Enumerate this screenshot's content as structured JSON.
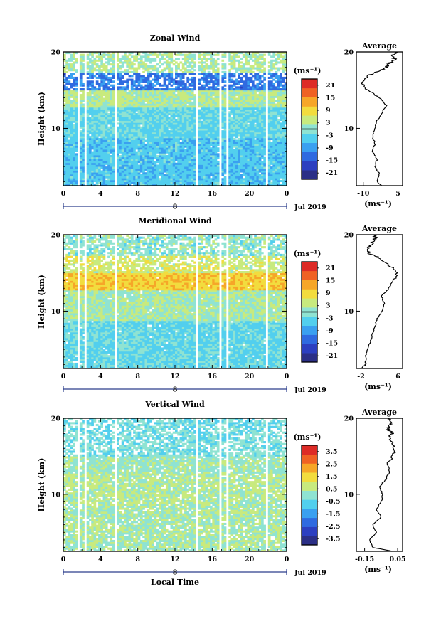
{
  "colors": {
    "colormap": [
      "#2b2f86",
      "#2c3fc0",
      "#2f6ae0",
      "#3aa0f0",
      "#52cfee",
      "#8fe3d2",
      "#c8ea7e",
      "#f2dc3e",
      "#f6a628",
      "#ef6224",
      "#dd2b26"
    ],
    "frame": "#000000",
    "time_axis_line": "#2c3e8c",
    "average_line": "#000000"
  },
  "time_axis_date": "Jul 2019",
  "time_axis_day": "8",
  "xlabel_common": "Local Time",
  "chart_data": [
    {
      "type": "heatmap",
      "title": "Zonal Wind",
      "ylabel": "Height (km)",
      "x_ticks": [
        "0",
        "4",
        "8",
        "12",
        "16",
        "20",
        "0"
      ],
      "xlim": [
        0,
        24
      ],
      "ylim": [
        2.5,
        20
      ],
      "y_ticks": [
        "20",
        "10"
      ],
      "colorbar": {
        "unit": "(ms⁻¹)",
        "ticks": [
          "21",
          "15",
          "9",
          "3",
          "-3",
          "-9",
          "-15",
          "-21"
        ],
        "range": [
          -24,
          24
        ],
        "zero_line": 0
      },
      "data_gaps_hours": [
        [
          1.5,
          1.7
        ],
        [
          2.2,
          2.5
        ],
        [
          5.5,
          5.8
        ],
        [
          14.3,
          14.5
        ],
        [
          16.7,
          16.9
        ],
        [
          17.5,
          17.8
        ],
        [
          21.8,
          22.0
        ]
      ],
      "features": [
        {
          "z_range_km": [
            3,
            9
          ],
          "value_ms": -5
        },
        {
          "z_range_km": [
            10,
            13
          ],
          "value_ms": -3
        },
        {
          "z_range_km": [
            13,
            15
          ],
          "value_ms": 3
        },
        {
          "z_range_km": [
            15,
            17
          ],
          "value_ms": -12
        },
        {
          "z_range_km": [
            17.5,
            19.5
          ],
          "value_ms": 2
        }
      ],
      "average": {
        "title": "Average",
        "xlabel": "(ms⁻¹)",
        "x_ticks": [
          "-10",
          "5"
        ],
        "xlim": [
          -13,
          7
        ],
        "z": [
          2.5,
          3,
          4,
          5,
          6,
          7,
          8,
          9,
          10,
          11,
          12,
          13,
          14,
          15,
          16,
          17,
          17.5,
          18,
          18.5,
          19,
          19.5,
          20
        ],
        "u": [
          -2,
          -4,
          -3,
          -5,
          -4,
          -6,
          -5,
          -6,
          -5,
          -4,
          -2,
          0,
          -3,
          -8,
          -11,
          -7,
          -3,
          0,
          1,
          4,
          2,
          5
        ]
      }
    },
    {
      "type": "heatmap",
      "title": "Meridional Wind",
      "ylabel": "Height (km)",
      "x_ticks": [
        "0",
        "4",
        "8",
        "12",
        "16",
        "20",
        "0"
      ],
      "xlim": [
        0,
        24
      ],
      "ylim": [
        2.5,
        20
      ],
      "y_ticks": [
        "20",
        "10"
      ],
      "colorbar": {
        "unit": "(ms⁻¹)",
        "ticks": [
          "21",
          "15",
          "9",
          "3",
          "-3",
          "-9",
          "-15",
          "-21"
        ],
        "range": [
          -24,
          24
        ],
        "zero_line": 0
      },
      "data_gaps_hours": [
        [
          1.5,
          1.7
        ],
        [
          2.2,
          2.5
        ],
        [
          5.5,
          5.8
        ],
        [
          14.3,
          14.5
        ],
        [
          16.7,
          16.9
        ],
        [
          17.5,
          17.8
        ],
        [
          21.8,
          22.0
        ]
      ],
      "features": [
        {
          "z_range_km": [
            3,
            9
          ],
          "value_ms": -3
        },
        {
          "z_range_km": [
            10,
            13
          ],
          "value_ms": 2
        },
        {
          "z_range_km": [
            13,
            15
          ],
          "value_ms": 10
        },
        {
          "z_range_km": [
            15,
            17
          ],
          "value_ms": 5
        },
        {
          "z_range_km": [
            17.5,
            19.5
          ],
          "value_ms": 0
        }
      ],
      "average": {
        "title": "Average",
        "xlabel": "(ms⁻¹)",
        "x_ticks": [
          "-2",
          "6"
        ],
        "xlim": [
          -3,
          7
        ],
        "z": [
          2.5,
          3,
          4,
          5,
          6,
          7,
          8,
          9,
          10,
          11,
          12,
          13,
          14,
          15,
          16,
          17,
          17.5,
          18,
          18.5,
          19,
          19.5,
          20
        ],
        "u": [
          -2,
          -1,
          -1,
          -0.5,
          0,
          0.5,
          1,
          1.5,
          2.5,
          3,
          2.5,
          4,
          5,
          6,
          4,
          2,
          0,
          -1,
          0,
          0.5,
          1,
          1
        ]
      }
    },
    {
      "type": "heatmap",
      "title": "Vertical Wind",
      "ylabel": "Height (km)",
      "x_ticks": [
        "0",
        "4",
        "8",
        "12",
        "16",
        "20",
        "0"
      ],
      "xlim": [
        0,
        24
      ],
      "ylim": [
        2.5,
        20
      ],
      "y_ticks": [
        "20",
        "10"
      ],
      "colorbar": {
        "unit": "(ms⁻¹)",
        "ticks": [
          "3.5",
          "2.5",
          "1.5",
          "0.5",
          "-0.5",
          "-1.5",
          "-2.5",
          "-3.5"
        ],
        "range": [
          -4,
          4
        ],
        "zero_line": null
      },
      "data_gaps_hours": [
        [
          1.5,
          1.7
        ],
        [
          2.2,
          2.5
        ],
        [
          5.5,
          5.8
        ],
        [
          14.3,
          14.5
        ],
        [
          16.7,
          16.9
        ],
        [
          17.5,
          17.8
        ],
        [
          21.8,
          22.0
        ]
      ],
      "features": [
        {
          "z_range_km": [
            3,
            9
          ],
          "value_ms": 0.3
        },
        {
          "z_range_km": [
            10,
            13
          ],
          "value_ms": 0.5
        },
        {
          "z_range_km": [
            13,
            15
          ],
          "value_ms": 0.2
        },
        {
          "z_range_km": [
            15,
            17
          ],
          "value_ms": -0.2
        },
        {
          "z_range_km": [
            17.5,
            19.5
          ],
          "value_ms": -0.3
        }
      ],
      "average": {
        "title": "Average",
        "xlabel": "(ms⁻¹)",
        "x_ticks": [
          "-0.15",
          "0.05"
        ],
        "xlim": [
          -0.2,
          0.08
        ],
        "z": [
          2.5,
          3,
          4,
          5,
          6,
          7,
          8,
          9,
          10,
          11,
          12,
          13,
          14,
          15,
          16,
          17,
          17.5,
          18,
          18.5,
          19,
          19.5,
          20
        ],
        "u": [
          0.02,
          -0.1,
          -0.12,
          -0.08,
          -0.1,
          -0.05,
          -0.08,
          -0.05,
          -0.04,
          -0.06,
          -0.02,
          0,
          -0.01,
          0.02,
          0.03,
          0.01,
          0,
          0.02,
          -0.01,
          0,
          0.01,
          0
        ]
      }
    }
  ]
}
